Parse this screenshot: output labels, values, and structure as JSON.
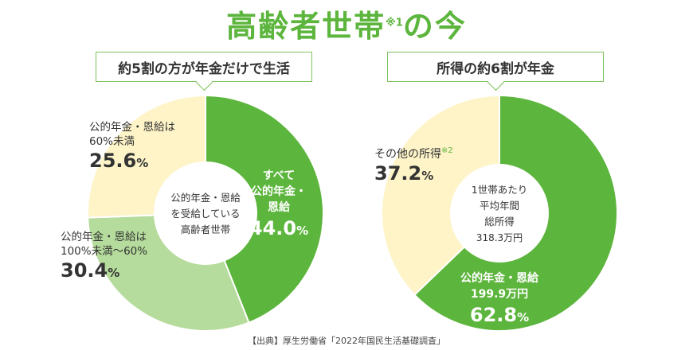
{
  "title": "高齢者世帯",
  "title_note": "※1",
  "title_suffix": "の今",
  "colors": {
    "dark_green": "#5cb53c",
    "light_green": "#b5dc9c",
    "cream": "#fef4c8",
    "outline": "#7cc25a"
  },
  "chart_data": [
    {
      "type": "pie",
      "callout": "約5割の方が年金だけで生活",
      "center_label": [
        "公的年金・恩給",
        "を受給している",
        "高齢者世帯"
      ],
      "slices": [
        {
          "label": [
            "すべて",
            "公的年金・",
            "恩給"
          ],
          "value": 44.0,
          "value_label": "44.0",
          "color": "#5cb53c"
        },
        {
          "label": [
            "公的年金・恩給は",
            "100%未満〜60%"
          ],
          "value": 30.4,
          "value_label": "30.4",
          "color": "#b5dc9c"
        },
        {
          "label": [
            "公的年金・恩給は",
            "60%未満"
          ],
          "value": 25.6,
          "value_label": "25.6",
          "color": "#fef4c8"
        }
      ],
      "unit": "%"
    },
    {
      "type": "pie",
      "callout": "所得の約6割が年金",
      "center_label": [
        "1世帯あたり",
        "平均年間",
        "総所得",
        "318.3万円"
      ],
      "slices": [
        {
          "label": [
            "公的年金・恩給",
            "199.9万円"
          ],
          "value": 62.8,
          "value_label": "62.8",
          "color": "#5cb53c"
        },
        {
          "label": [
            "その他の所得"
          ],
          "note": "※2",
          "value": 37.2,
          "value_label": "37.2",
          "color": "#fef4c8"
        }
      ],
      "unit": "%"
    }
  ],
  "source": "【出典】厚生労働省「2022年国民生活基礎調査」"
}
